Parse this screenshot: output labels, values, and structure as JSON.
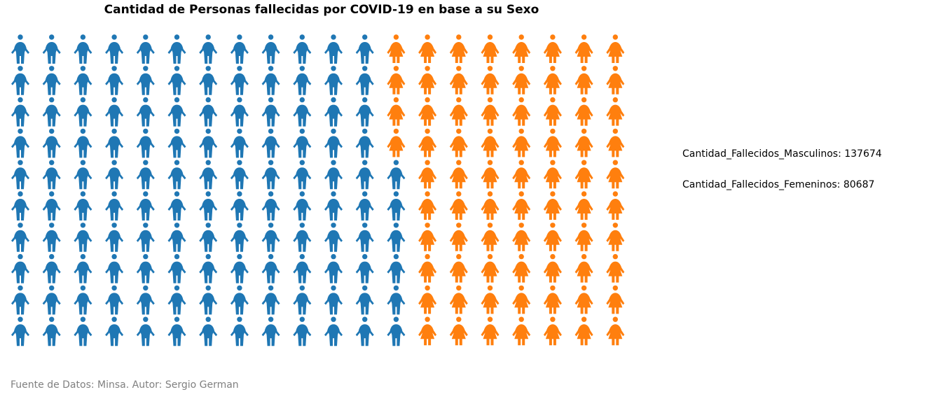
{
  "chart_data": {
    "type": "waffle",
    "title": "Cantidad de Personas fallecidas por COVID-19 en base a su Sexo",
    "rows": 10,
    "columns": 20,
    "series": [
      {
        "name": "Cantidad_Fallecidos_Masculinos",
        "value": 137674,
        "icon": "male-person-icon",
        "color": "#1f77b4"
      },
      {
        "name": "Cantidad_Fallecidos_Femeninos",
        "value": 80687,
        "icon": "female-person-icon",
        "color": "#ff7f0e"
      }
    ],
    "legend_position": "right"
  },
  "legend": [
    {
      "text": "Cantidad_Fallecidos_Masculinos: 137674"
    },
    {
      "text": "Cantidad_Fallecidos_Femeninos: 80687"
    }
  ],
  "source": "Fuente de Datos: Minsa. Autor: Sergio German"
}
